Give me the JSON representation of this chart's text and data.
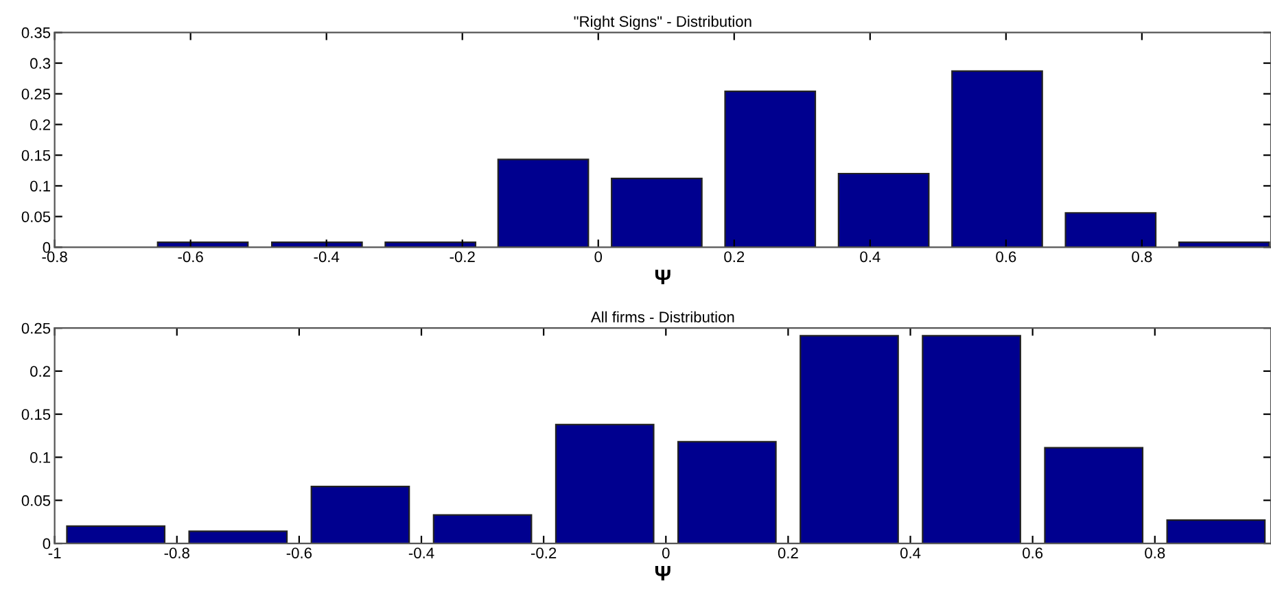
{
  "chart_data": [
    {
      "type": "bar",
      "title": "\"Right Signs\" - Distribution",
      "xlabel": "Ψ",
      "x": [
        -0.582,
        -0.414,
        -0.247,
        -0.081,
        0.086,
        0.253,
        0.42,
        0.587,
        0.754,
        0.921
      ],
      "values": [
        0.008,
        0.008,
        0.008,
        0.143,
        0.112,
        0.254,
        0.12,
        0.287,
        0.056,
        0.008
      ],
      "color": "#00008f",
      "xlim": [
        -0.8,
        0.99
      ],
      "xticks": [
        -0.8,
        -0.6,
        -0.4,
        -0.2,
        0,
        0.2,
        0.4,
        0.6,
        0.8
      ],
      "ylim": [
        0,
        0.35
      ],
      "yticks": [
        0,
        0.05,
        0.1,
        0.15,
        0.2,
        0.25,
        0.3,
        0.35
      ],
      "grid": false,
      "legend": false
    },
    {
      "type": "bar",
      "title": "All firms - Distribution",
      "xlabel": "Ψ",
      "x": [
        -0.9,
        -0.7,
        -0.5,
        -0.3,
        -0.1,
        0.1,
        0.3,
        0.5,
        0.7,
        0.9
      ],
      "values": [
        0.02,
        0.014,
        0.066,
        0.033,
        0.138,
        0.118,
        0.241,
        0.241,
        0.111,
        0.027
      ],
      "color": "#00008f",
      "xlim": [
        -1,
        0.99
      ],
      "xticks": [
        -1,
        -0.8,
        -0.6,
        -0.4,
        -0.2,
        0,
        0.2,
        0.4,
        0.6,
        0.8
      ],
      "ylim": [
        0,
        0.25
      ],
      "yticks": [
        0,
        0.05,
        0.1,
        0.15,
        0.2,
        0.25
      ],
      "grid": false,
      "legend": false
    }
  ]
}
